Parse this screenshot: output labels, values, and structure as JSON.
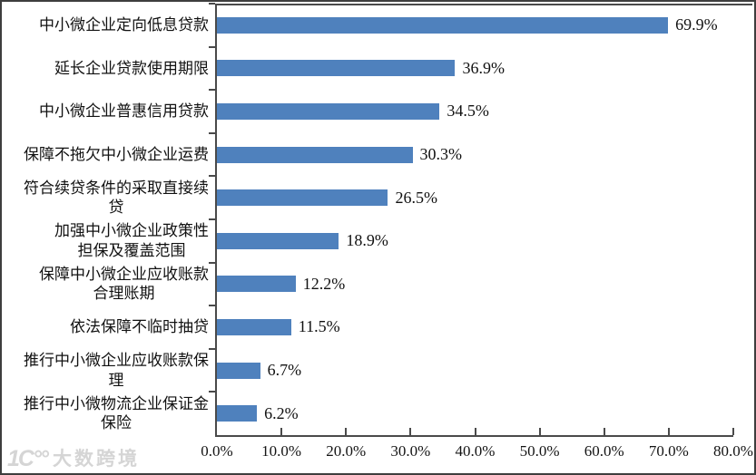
{
  "chart_data": {
    "type": "bar",
    "orientation": "horizontal",
    "title": "",
    "xlabel": "",
    "ylabel": "",
    "xlim": [
      0,
      80
    ],
    "grid": false,
    "legend": false,
    "bar_color": "#4f81bd",
    "axis_color": "#4a4a4a",
    "rows": [
      {
        "label": "中小微企业定向低息贷款",
        "value": 69.9,
        "value_label": "69.9%"
      },
      {
        "label": "延长企业贷款使用期限",
        "value": 36.9,
        "value_label": "36.9%"
      },
      {
        "label": "中小微企业普惠信用贷款",
        "value": 34.5,
        "value_label": "34.5%"
      },
      {
        "label": "保障不拖欠中小微企业运费",
        "value": 30.3,
        "value_label": "30.3%"
      },
      {
        "label": "符合续贷条件的采取直接续\n贷",
        "value": 26.5,
        "value_label": "26.5%"
      },
      {
        "label": "加强中小微企业政策性\n担保及覆盖范围",
        "value": 18.9,
        "value_label": "18.9%"
      },
      {
        "label": "保障中小微企业应收账款\n合理账期",
        "value": 12.2,
        "value_label": "12.2%"
      },
      {
        "label": "依法保障不临时抽贷",
        "value": 11.5,
        "value_label": "11.5%"
      },
      {
        "label": "推行中小微企业应收账款保\n理",
        "value": 6.7,
        "value_label": "6.7%"
      },
      {
        "label": "推行中小微物流企业保证金\n保险",
        "value": 6.2,
        "value_label": "6.2%"
      }
    ],
    "x_ticks": [
      "0.0%",
      "10.0%",
      "20.0%",
      "30.0%",
      "40.0%",
      "50.0%",
      "60.0%",
      "70.0%",
      "80.0%"
    ]
  },
  "watermark": {
    "logo_glyph": "1C°°",
    "text": "大数跨境"
  }
}
